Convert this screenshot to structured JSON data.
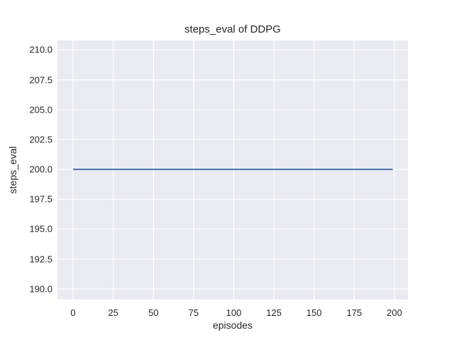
{
  "chart_data": {
    "type": "line",
    "title": "steps_eval of DDPG",
    "xlabel": "episodes",
    "ylabel": "steps_eval",
    "xlim": [
      -9.7,
      208.4
    ],
    "ylim": [
      189.1,
      210.8
    ],
    "xticks": [
      0,
      25,
      50,
      75,
      100,
      125,
      150,
      175,
      200
    ],
    "xtick_labels": [
      "0",
      "25",
      "50",
      "75",
      "100",
      "125",
      "150",
      "175",
      "200"
    ],
    "yticks": [
      190.0,
      192.5,
      195.0,
      197.5,
      200.0,
      202.5,
      205.0,
      207.5,
      210.0
    ],
    "ytick_labels": [
      "190.0",
      "192.5",
      "195.0",
      "197.5",
      "200.0",
      "202.5",
      "205.0",
      "207.5",
      "210.0"
    ],
    "grid": true,
    "legend": "none",
    "series": [
      {
        "name": "steps_eval",
        "description": "constant value 200 for every episode 0 through 199",
        "constant_value": 200,
        "x_start": 0,
        "x_end": 199,
        "points": [
          [
            0,
            200
          ],
          [
            199,
            200
          ]
        ],
        "color": "#4c72b0",
        "line_width": 2
      }
    ],
    "colors": {
      "figure_background": "#ffffff",
      "axes_background": "#eaeaf2",
      "gridline": "#ffffff",
      "text": "#262626"
    }
  }
}
